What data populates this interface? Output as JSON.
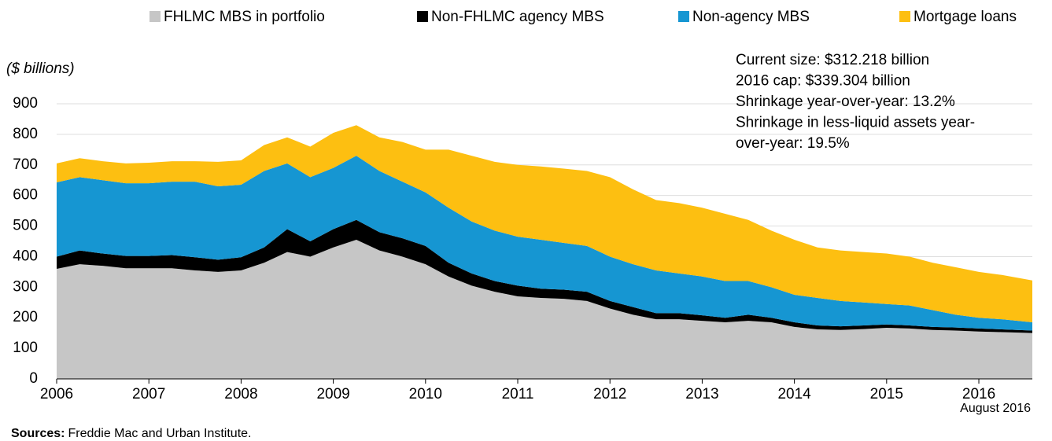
{
  "chart_data": {
    "type": "stacked-area",
    "y_axis_label": "($ billions)",
    "annotations": [
      "Current size: $312.218 billion",
      "2016 cap: $339.304 billion",
      "Shrinkage year-over-year: 13.2%",
      "Shrinkage in less-liquid assets year-",
      "over-year: 19.5%"
    ],
    "source_label": "Sources:",
    "source": "Freddie Mac and Urban Institute.",
    "date_note": "August 2016",
    "x": [
      2006,
      2006.25,
      2006.5,
      2006.75,
      2007,
      2007.25,
      2007.5,
      2007.75,
      2008,
      2008.25,
      2008.5,
      2008.75,
      2009,
      2009.25,
      2009.5,
      2009.75,
      2010,
      2010.25,
      2010.5,
      2010.75,
      2011,
      2011.25,
      2011.5,
      2011.75,
      2012,
      2012.25,
      2012.5,
      2012.75,
      2013,
      2013.25,
      2013.5,
      2013.75,
      2014,
      2014.25,
      2014.5,
      2014.75,
      2015,
      2015.25,
      2015.5,
      2015.75,
      2016,
      2016.25,
      2016.58
    ],
    "series": [
      {
        "name": "FHLMC MBS in portfolio",
        "color": "#c6c6c6",
        "values": [
          360,
          375,
          370,
          362,
          362,
          362,
          355,
          350,
          355,
          380,
          415,
          400,
          430,
          455,
          420,
          400,
          375,
          335,
          305,
          285,
          270,
          265,
          262,
          255,
          230,
          210,
          195,
          195,
          190,
          185,
          190,
          185,
          170,
          162,
          160,
          163,
          167,
          165,
          160,
          158,
          155,
          153,
          150
        ]
      },
      {
        "name": "Non-FHLMC agency MBS",
        "color": "#000000",
        "values": [
          40,
          45,
          40,
          40,
          40,
          43,
          43,
          40,
          43,
          50,
          75,
          50,
          60,
          65,
          60,
          60,
          60,
          45,
          40,
          35,
          35,
          30,
          30,
          30,
          25,
          25,
          20,
          20,
          18,
          15,
          20,
          15,
          15,
          13,
          12,
          12,
          11,
          10,
          10,
          10,
          10,
          9,
          8
        ]
      },
      {
        "name": "Non-agency MBS",
        "color": "#1696d2",
        "values": [
          243,
          240,
          240,
          238,
          238,
          240,
          247,
          240,
          237,
          250,
          215,
          210,
          200,
          210,
          200,
          185,
          175,
          180,
          170,
          165,
          160,
          160,
          153,
          150,
          145,
          140,
          140,
          130,
          127,
          120,
          110,
          100,
          90,
          90,
          83,
          75,
          67,
          65,
          55,
          42,
          35,
          33,
          27
        ]
      },
      {
        "name": "Mortgage loans",
        "color": "#fdbf11",
        "values": [
          62,
          62,
          62,
          65,
          67,
          67,
          67,
          80,
          80,
          85,
          85,
          100,
          115,
          100,
          110,
          130,
          140,
          190,
          215,
          225,
          235,
          240,
          243,
          245,
          260,
          245,
          230,
          230,
          225,
          220,
          200,
          185,
          180,
          165,
          165,
          165,
          165,
          160,
          155,
          155,
          150,
          145,
          137
        ]
      }
    ],
    "xlim": [
      2006,
      2016.58
    ],
    "xticks": [
      2006,
      2007,
      2008,
      2009,
      2010,
      2011,
      2012,
      2013,
      2014,
      2015,
      2016
    ],
    "ylim": [
      0,
      900
    ],
    "yticks": [
      0,
      100,
      200,
      300,
      400,
      500,
      600,
      700,
      800,
      900
    ],
    "grid": true
  }
}
